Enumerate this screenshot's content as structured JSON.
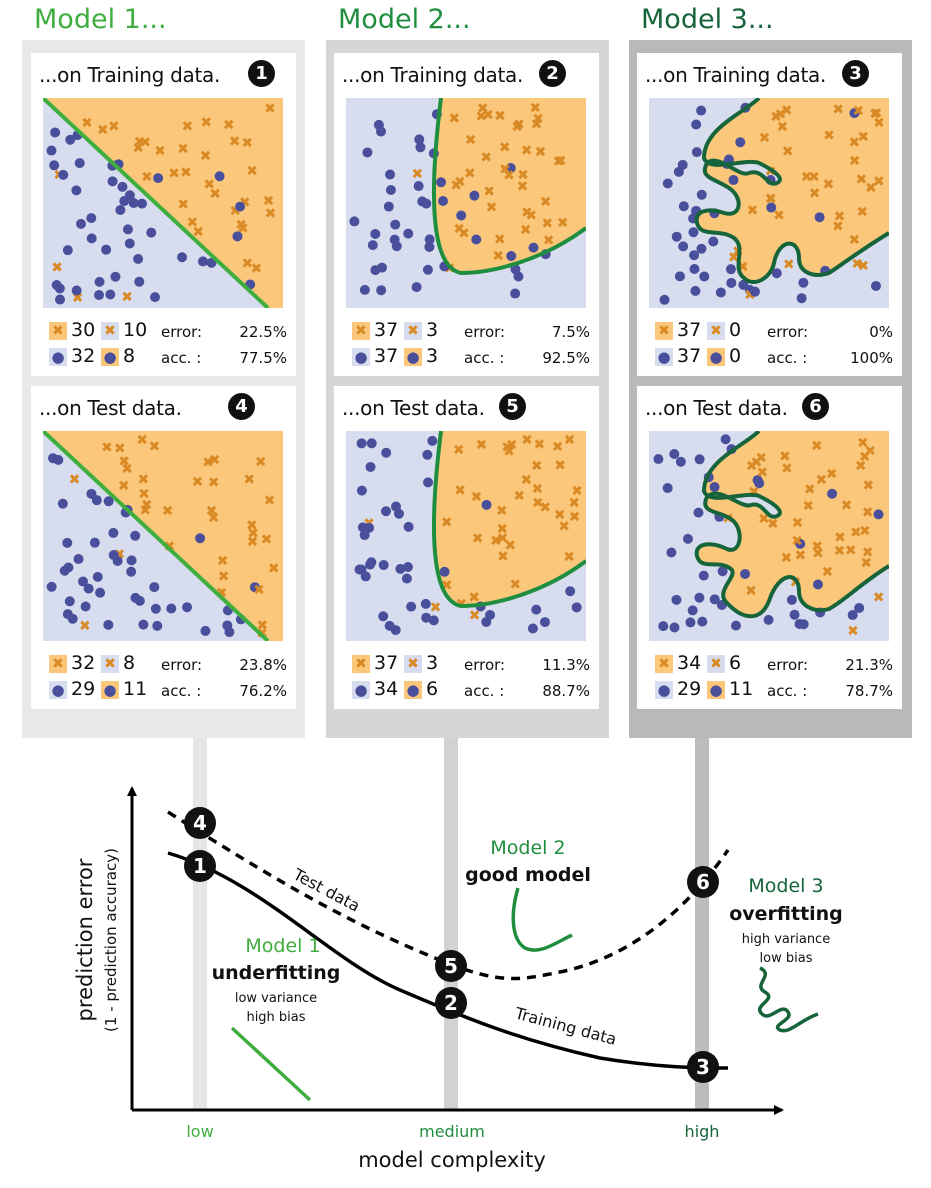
{
  "models": [
    {
      "title": "Model 1...",
      "color": "#3fae3f",
      "train": {
        "label": "...on Training data.",
        "badge": "1",
        "c1": "30",
        "c2": "10",
        "c3": "32",
        "c4": "8",
        "error": "22.5%",
        "acc": "77.5%"
      },
      "test": {
        "label": "...on Test data.",
        "badge": "4",
        "c1": "32",
        "c2": "8",
        "c3": "29",
        "c4": "11",
        "error": "23.8%",
        "acc": "76.2%"
      }
    },
    {
      "title": "Model 2...",
      "color": "#1f8f3f",
      "train": {
        "label": "...on Training data.",
        "badge": "2",
        "c1": "37",
        "c2": "3",
        "c3": "37",
        "c4": "3",
        "error": "7.5%",
        "acc": "92.5%"
      },
      "test": {
        "label": "...on Test data.",
        "badge": "5",
        "c1": "37",
        "c2": "3",
        "c3": "34",
        "c4": "6",
        "error": "11.3%",
        "acc": "88.7%"
      }
    },
    {
      "title": "Model 3...",
      "color": "#16643a",
      "train": {
        "label": "...on Training data.",
        "badge": "3",
        "c1": "37",
        "c2": "0",
        "c3": "37",
        "c4": "0",
        "error": "0%",
        "acc": "100%"
      },
      "test": {
        "label": "...on Test data.",
        "badge": "6",
        "c1": "34",
        "c2": "6",
        "c3": "29",
        "c4": "11",
        "error": "21.3%",
        "acc": "78.7%"
      }
    }
  ],
  "labels": {
    "error": "error:",
    "acc": "acc. :"
  },
  "chart": {
    "ylabel": "prediction error",
    "ylabel2": "(1 - prediction accuracy)",
    "xlabel": "model complexity",
    "ticks": [
      "low",
      "medium",
      "high"
    ],
    "test_curve": "Test data",
    "train_curve": "Training data",
    "points": [
      "1",
      "2",
      "3",
      "4",
      "5",
      "6"
    ],
    "m1": {
      "name": "Model 1",
      "kind": "underfitting",
      "line1": "low variance",
      "line2": "high bias"
    },
    "m2": {
      "name": "Model 2",
      "kind": "good model"
    },
    "m3": {
      "name": "Model 3",
      "kind": "overfitting",
      "line1": "high variance",
      "line2": "low bias"
    }
  },
  "colors": {
    "orange_region": "#fbc77a",
    "blue_region": "#d7dcef",
    "cross": "#d98a25",
    "dot": "#4a4f9c"
  }
}
